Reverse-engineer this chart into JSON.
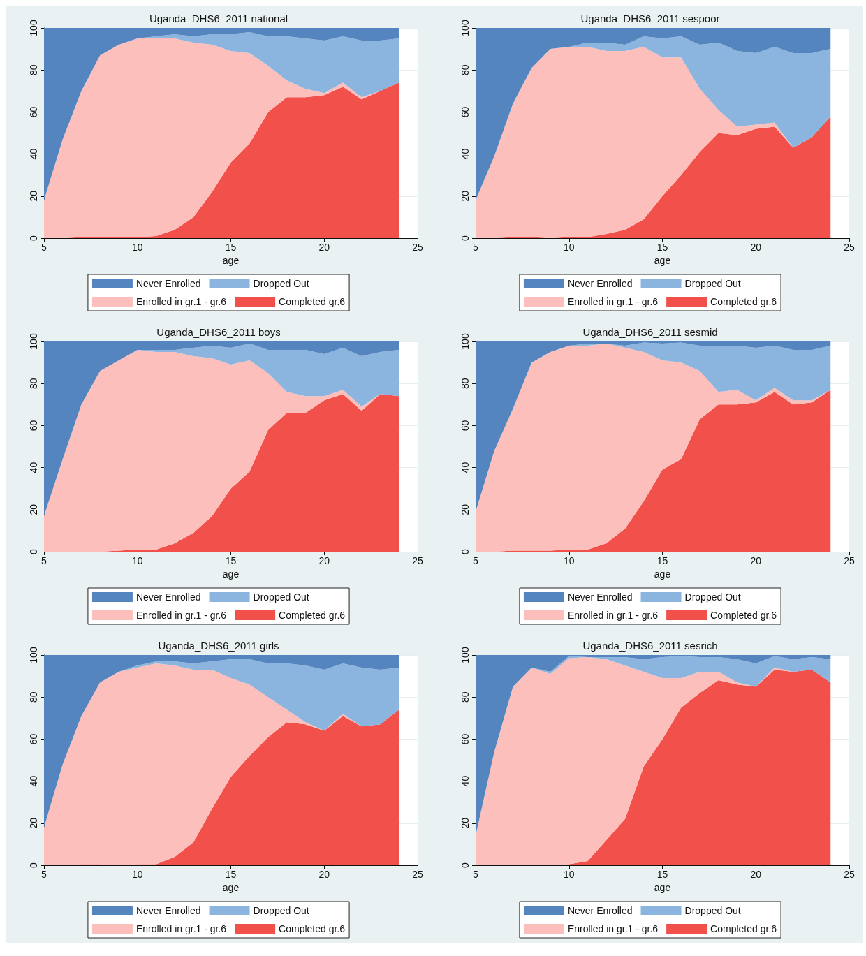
{
  "chart_data": [
    {
      "type": "area",
      "title": "Uganda_DHS6_2011 national",
      "xlabel": "age",
      "stacked": true,
      "x": [
        5,
        6,
        7,
        8,
        9,
        10,
        11,
        12,
        13,
        14,
        15,
        16,
        17,
        18,
        19,
        20,
        21,
        22,
        23,
        24
      ],
      "xlim": [
        5,
        25
      ],
      "xticks": [
        5,
        10,
        15,
        20,
        25
      ],
      "ylim": [
        0,
        100
      ],
      "yticks": [
        0,
        20,
        40,
        60,
        80,
        100
      ],
      "grid": "y",
      "legend": "bottom",
      "series": [
        {
          "name": "Completed gr.6",
          "color": "#f2514b",
          "values": [
            0,
            0,
            0.5,
            0.5,
            0.5,
            0.5,
            1,
            4,
            10,
            22,
            36,
            45,
            60,
            67,
            67,
            68,
            72,
            66,
            70,
            74
          ]
        },
        {
          "name": "Enrolled in gr.1 - gr.6",
          "color": "#fdbfbb",
          "values": [
            18,
            47,
            69.5,
            86.5,
            91.5,
            94.5,
            94,
            91,
            83,
            70,
            53,
            43,
            22,
            8,
            4,
            1,
            2,
            1,
            0,
            0
          ]
        },
        {
          "name": "Dropped Out",
          "color": "#8bb4de",
          "values": [
            0,
            0,
            0,
            0,
            0,
            0,
            1,
            2,
            3,
            5,
            8,
            10,
            14,
            21,
            24,
            25,
            22,
            27,
            24,
            21
          ]
        },
        {
          "name": "Never Enrolled",
          "color": "#5585bf",
          "values": [
            82,
            53,
            30,
            13,
            8,
            5,
            4,
            3,
            4,
            3,
            3,
            2,
            4,
            4,
            5,
            6,
            4,
            6,
            6,
            5
          ]
        }
      ]
    },
    {
      "type": "area",
      "title": "Uganda_DHS6_2011 sespoor",
      "xlabel": "age",
      "stacked": true,
      "x": [
        5,
        6,
        7,
        8,
        9,
        10,
        11,
        12,
        13,
        14,
        15,
        16,
        17,
        18,
        19,
        20,
        21,
        22,
        23,
        24
      ],
      "xlim": [
        5,
        25
      ],
      "xticks": [
        5,
        10,
        15,
        20,
        25
      ],
      "ylim": [
        0,
        100
      ],
      "yticks": [
        0,
        20,
        40,
        60,
        80,
        100
      ],
      "grid": "y",
      "legend": "bottom",
      "series": [
        {
          "name": "Completed gr.6",
          "color": "#f2514b",
          "values": [
            0,
            0,
            0.5,
            0.5,
            0,
            0.5,
            0.5,
            2,
            4,
            9,
            20,
            30,
            41,
            50,
            49,
            52,
            53,
            43,
            48,
            58
          ]
        },
        {
          "name": "Enrolled in gr.1 - gr.6",
          "color": "#fdbfbb",
          "values": [
            18,
            39,
            63.5,
            80.5,
            90,
            90.5,
            90.5,
            87,
            85,
            82,
            66,
            56,
            30,
            11,
            4,
            2,
            2,
            0,
            0,
            0
          ]
        },
        {
          "name": "Dropped Out",
          "color": "#8bb4de",
          "values": [
            0,
            0,
            0,
            0,
            0,
            0,
            2,
            4,
            3,
            5,
            9,
            10,
            21,
            32,
            36,
            34,
            36,
            45,
            40,
            32
          ]
        },
        {
          "name": "Never Enrolled",
          "color": "#5585bf",
          "values": [
            82,
            61,
            36,
            19,
            10,
            9,
            7,
            7,
            8,
            4,
            5,
            4,
            8,
            7,
            11,
            12,
            9,
            12,
            12,
            10
          ]
        }
      ]
    },
    {
      "type": "area",
      "title": "Uganda_DHS6_2011 boys",
      "xlabel": "age",
      "stacked": true,
      "x": [
        5,
        6,
        7,
        8,
        9,
        10,
        11,
        12,
        13,
        14,
        15,
        16,
        17,
        18,
        19,
        20,
        21,
        22,
        23,
        24
      ],
      "xlim": [
        5,
        25
      ],
      "xticks": [
        5,
        10,
        15,
        20,
        25
      ],
      "ylim": [
        0,
        100
      ],
      "yticks": [
        0,
        20,
        40,
        60,
        80,
        100
      ],
      "grid": "y",
      "legend": "bottom",
      "series": [
        {
          "name": "Completed gr.6",
          "color": "#f2514b",
          "values": [
            0,
            0,
            0,
            0,
            0.5,
            1,
            1,
            4,
            9,
            17,
            30,
            38,
            58,
            66,
            66,
            72,
            75,
            67,
            75,
            74
          ]
        },
        {
          "name": "Enrolled in gr.1 - gr.6",
          "color": "#fdbfbb",
          "values": [
            17,
            44,
            70,
            86,
            90.5,
            95,
            94,
            91,
            84,
            75,
            59,
            53,
            27,
            10,
            8,
            2,
            2,
            2,
            0,
            0
          ]
        },
        {
          "name": "Dropped Out",
          "color": "#8bb4de",
          "values": [
            0,
            0,
            0,
            0,
            0,
            0,
            1,
            1,
            4,
            6,
            8,
            8,
            11,
            20,
            22,
            20,
            20,
            24,
            20,
            22
          ]
        },
        {
          "name": "Never Enrolled",
          "color": "#5585bf",
          "values": [
            83,
            56,
            30,
            14,
            9,
            4,
            4,
            4,
            3,
            2,
            3,
            1,
            4,
            4,
            4,
            6,
            3,
            7,
            5,
            4
          ]
        }
      ]
    },
    {
      "type": "area",
      "title": "Uganda_DHS6_2011 sesmid",
      "xlabel": "age",
      "stacked": true,
      "x": [
        5,
        6,
        7,
        8,
        9,
        10,
        11,
        12,
        13,
        14,
        15,
        16,
        17,
        18,
        19,
        20,
        21,
        22,
        23,
        24
      ],
      "xlim": [
        5,
        25
      ],
      "xticks": [
        5,
        10,
        15,
        20,
        25
      ],
      "ylim": [
        0,
        100
      ],
      "yticks": [
        0,
        20,
        40,
        60,
        80,
        100
      ],
      "grid": "y",
      "legend": "bottom",
      "series": [
        {
          "name": "Completed gr.6",
          "color": "#f2514b",
          "values": [
            0,
            0,
            0.5,
            0.5,
            0.5,
            1,
            1,
            4,
            11,
            24,
            39,
            44,
            63,
            70,
            70,
            71,
            76,
            70,
            71,
            77
          ]
        },
        {
          "name": "Enrolled in gr.1 - gr.6",
          "color": "#fdbfbb",
          "values": [
            19,
            48,
            67.5,
            89.5,
            94.5,
            97,
            97,
            95,
            86,
            71,
            52,
            46,
            23,
            6,
            7,
            1,
            2,
            2,
            1,
            0
          ]
        },
        {
          "name": "Dropped Out",
          "color": "#8bb4de",
          "values": [
            0,
            0,
            0,
            0,
            0,
            0,
            1,
            0,
            1,
            4.5,
            8,
            9.5,
            12,
            22,
            21,
            25,
            20,
            24,
            24,
            21
          ]
        },
        {
          "name": "Never Enrolled",
          "color": "#5585bf",
          "values": [
            81,
            52,
            32,
            10,
            5,
            2,
            1,
            1,
            2,
            0.5,
            1,
            0.5,
            2,
            2,
            2,
            3,
            2,
            4,
            4,
            2
          ]
        }
      ]
    },
    {
      "type": "area",
      "title": "Uganda_DHS6_2011 girls",
      "xlabel": "age",
      "stacked": true,
      "x": [
        5,
        6,
        7,
        8,
        9,
        10,
        11,
        12,
        13,
        14,
        15,
        16,
        17,
        18,
        19,
        20,
        21,
        22,
        23,
        24
      ],
      "xlim": [
        5,
        25
      ],
      "xticks": [
        5,
        10,
        15,
        20,
        25
      ],
      "ylim": [
        0,
        100
      ],
      "yticks": [
        0,
        20,
        40,
        60,
        80,
        100
      ],
      "grid": "y",
      "legend": "bottom",
      "series": [
        {
          "name": "Completed gr.6",
          "color": "#f2514b",
          "values": [
            0,
            0,
            0.5,
            0.5,
            0,
            0.5,
            0.5,
            4,
            11,
            27,
            42,
            52,
            61,
            68,
            67,
            64,
            71,
            66,
            67,
            74
          ]
        },
        {
          "name": "Enrolled in gr.1 - gr.6",
          "color": "#fdbfbb",
          "values": [
            18,
            48,
            70.5,
            86.5,
            92,
            93.5,
            95.5,
            91,
            82,
            66,
            47,
            34,
            19,
            6,
            1,
            0,
            1,
            0,
            0,
            0
          ]
        },
        {
          "name": "Dropped Out",
          "color": "#8bb4de",
          "values": [
            0,
            0,
            0,
            0,
            0,
            1,
            1,
            2,
            3,
            4,
            9,
            12,
            16,
            22,
            27,
            29,
            24,
            28,
            26,
            20
          ]
        },
        {
          "name": "Never Enrolled",
          "color": "#5585bf",
          "values": [
            82,
            52,
            29,
            13,
            8,
            5,
            3,
            3,
            4,
            3,
            2,
            2,
            4,
            4,
            5,
            7,
            4,
            6,
            7,
            6
          ]
        }
      ]
    },
    {
      "type": "area",
      "title": "Uganda_DHS6_2011 sesrich",
      "xlabel": "age",
      "stacked": true,
      "x": [
        5,
        6,
        7,
        8,
        9,
        10,
        11,
        12,
        13,
        14,
        15,
        16,
        17,
        18,
        19,
        20,
        21,
        22,
        23,
        24
      ],
      "xlim": [
        5,
        25
      ],
      "xticks": [
        5,
        10,
        15,
        20,
        25
      ],
      "ylim": [
        0,
        100
      ],
      "yticks": [
        0,
        20,
        40,
        60,
        80,
        100
      ],
      "grid": "y",
      "legend": "bottom",
      "series": [
        {
          "name": "Completed gr.6",
          "color": "#f2514b",
          "values": [
            0,
            0,
            0,
            0,
            0,
            0.5,
            2,
            12,
            22,
            47,
            60,
            75,
            82,
            88,
            86,
            85,
            93,
            92,
            93,
            87
          ]
        },
        {
          "name": "Enrolled in gr.1 - gr.6",
          "color": "#fdbfbb",
          "values": [
            14,
            54,
            85,
            94,
            91,
            98,
            97,
            86,
            73,
            45,
            29,
            14,
            10,
            4,
            1,
            0,
            1,
            0,
            0,
            0
          ]
        },
        {
          "name": "Dropped Out",
          "color": "#8bb4de",
          "values": [
            0,
            0,
            0,
            0,
            1,
            1,
            0,
            1,
            4,
            6,
            10,
            10.5,
            7,
            7,
            11,
            11,
            5.5,
            6,
            6,
            11
          ]
        },
        {
          "name": "Never Enrolled",
          "color": "#5585bf",
          "values": [
            86,
            46,
            15,
            6,
            8,
            0.5,
            1,
            1,
            1,
            2,
            1,
            0.5,
            1,
            1,
            2,
            4,
            0.5,
            2,
            1,
            2
          ]
        }
      ]
    }
  ]
}
